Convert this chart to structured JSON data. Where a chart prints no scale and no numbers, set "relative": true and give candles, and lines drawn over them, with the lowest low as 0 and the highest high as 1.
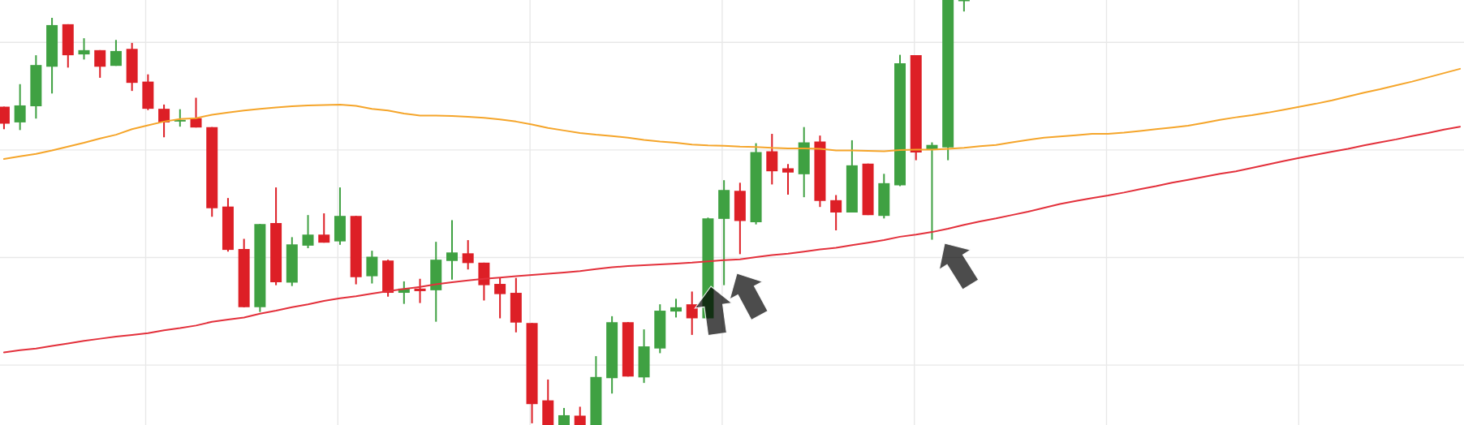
{
  "chart_data": {
    "type": "candlestick",
    "relative": true,
    "tick_labels": false,
    "grid": true,
    "categories": [
      null,
      null,
      null,
      null,
      null,
      null,
      null,
      null,
      null,
      null,
      null,
      null,
      null,
      null,
      null,
      null,
      null,
      null,
      null,
      null,
      null,
      null,
      null,
      null,
      null,
      null,
      null,
      null,
      null,
      null,
      null,
      null,
      null,
      null,
      null,
      null,
      null,
      null,
      null,
      null,
      null,
      null,
      null,
      null,
      null,
      null,
      null,
      null,
      null,
      null,
      null,
      null,
      null,
      null,
      null,
      null,
      null,
      null,
      null,
      null,
      null,
      null,
      null,
      null,
      null,
      null,
      null,
      null,
      null,
      null,
      null,
      null,
      null,
      null,
      null,
      null,
      null,
      null,
      null,
      null,
      null,
      null,
      null,
      null,
      null,
      null,
      null,
      null,
      null,
      null,
      null,
      null
    ],
    "ohlc": [
      [
        0.749,
        0.749,
        0.696,
        0.709
      ],
      [
        0.712,
        0.802,
        0.694,
        0.752
      ],
      [
        0.75,
        0.87,
        0.721,
        0.847
      ],
      [
        0.843,
        0.958,
        0.78,
        0.941
      ],
      [
        0.943,
        0.943,
        0.841,
        0.87
      ],
      [
        0.872,
        0.91,
        0.86,
        0.882
      ],
      [
        0.882,
        0.882,
        0.817,
        0.843
      ],
      [
        0.845,
        0.906,
        0.845,
        0.88
      ],
      [
        0.885,
        0.899,
        0.786,
        0.805
      ],
      [
        0.808,
        0.825,
        0.741,
        0.744
      ],
      [
        0.744,
        0.754,
        0.677,
        0.712
      ],
      [
        0.714,
        0.743,
        0.702,
        0.718
      ],
      [
        0.722,
        0.77,
        0.7,
        0.7
      ],
      [
        0.701,
        0.701,
        0.49,
        0.51
      ],
      [
        0.514,
        0.534,
        0.408,
        0.412
      ],
      [
        0.414,
        0.438,
        0.277,
        0.277
      ],
      [
        0.277,
        0.473,
        0.266,
        0.473
      ],
      [
        0.475,
        0.559,
        0.329,
        0.336
      ],
      [
        0.335,
        0.442,
        0.327,
        0.425
      ],
      [
        0.422,
        0.494,
        0.416,
        0.448
      ],
      [
        0.448,
        0.498,
        0.429,
        0.429
      ],
      [
        0.432,
        0.559,
        0.424,
        0.492
      ],
      [
        0.492,
        0.492,
        0.331,
        0.348
      ],
      [
        0.35,
        0.41,
        0.333,
        0.396
      ],
      [
        0.387,
        0.389,
        0.302,
        0.311
      ],
      [
        0.311,
        0.338,
        0.285,
        0.321
      ],
      [
        0.321,
        0.344,
        0.287,
        0.315
      ],
      [
        0.317,
        0.431,
        0.243,
        0.389
      ],
      [
        0.386,
        0.482,
        0.342,
        0.406
      ],
      [
        0.404,
        0.435,
        0.366,
        0.381
      ],
      [
        0.382,
        0.382,
        0.293,
        0.329
      ],
      [
        0.332,
        0.346,
        0.251,
        0.308
      ],
      [
        0.311,
        0.346,
        0.218,
        0.241
      ],
      [
        0.24,
        0.24,
        0.004,
        0.049
      ],
      [
        0.058,
        0.107,
        0,
        0
      ],
      [
        0,
        0.04,
        0,
        0.023
      ],
      [
        0.022,
        0.043,
        0,
        0
      ],
      [
        0,
        0.162,
        0,
        0.113
      ],
      [
        0.11,
        0.256,
        0.074,
        0.242
      ],
      [
        0.242,
        0.242,
        0.114,
        0.114
      ],
      [
        0.112,
        0.225,
        0.099,
        0.185
      ],
      [
        0.18,
        0.284,
        0.169,
        0.269
      ],
      [
        0.267,
        0.297,
        0.253,
        0.277
      ],
      [
        0.284,
        0.314,
        0.212,
        0.251
      ],
      [
        0.251,
        0.488,
        0.251,
        0.486
      ],
      [
        0.485,
        0.576,
        0.329,
        0.553
      ],
      [
        0.551,
        0.57,
        0.402,
        0.48
      ],
      [
        0.477,
        0.663,
        0.472,
        0.642
      ],
      [
        0.644,
        0.685,
        0.566,
        0.597
      ],
      [
        0.604,
        0.614,
        0.542,
        0.594
      ],
      [
        0.59,
        0.701,
        0.536,
        0.665
      ],
      [
        0.667,
        0.681,
        0.513,
        0.527
      ],
      [
        0.529,
        0.541,
        0.458,
        0.5
      ],
      [
        0.5,
        0.67,
        0.5,
        0.611
      ],
      [
        0.615,
        0.615,
        0.494,
        0.494
      ],
      [
        0.492,
        0.591,
        0.486,
        0.569
      ],
      [
        0.564,
        0.871,
        0.562,
        0.851
      ],
      [
        0.87,
        0.87,
        0.623,
        0.641
      ],
      [
        0.649,
        0.665,
        0.436,
        0.659
      ],
      [
        0.653,
        1,
        0.623,
        1
      ],
      [
        1,
        1,
        0.973,
        1
      ],
      null,
      null,
      null,
      null,
      null,
      null,
      null,
      null,
      null,
      null,
      null,
      null,
      null,
      null,
      null,
      null,
      null,
      null,
      null,
      null,
      null,
      null,
      null,
      null,
      null,
      null,
      null,
      null,
      null,
      null,
      null
    ],
    "colors": [
      "#dd1f26",
      "#3fa142",
      "#3fa142",
      "#3fa142",
      "#dd1f26",
      "#3fa142",
      "#dd1f26",
      "#3fa142",
      "#dd1f26",
      "#dd1f26",
      "#dd1f26",
      "#3fa142",
      "#dd1f26",
      "#dd1f26",
      "#dd1f26",
      "#dd1f26",
      "#3fa142",
      "#dd1f26",
      "#3fa142",
      "#3fa142",
      "#dd1f26",
      "#3fa142",
      "#dd1f26",
      "#3fa142",
      "#dd1f26",
      "#3fa142",
      "#dd1f26",
      "#3fa142",
      "#3fa142",
      "#dd1f26",
      "#dd1f26",
      "#dd1f26",
      "#dd1f26",
      "#dd1f26",
      "#dd1f26",
      "#3fa142",
      "#dd1f26",
      "#3fa142",
      "#3fa142",
      "#dd1f26",
      "#3fa142",
      "#3fa142",
      "#3fa142",
      "#dd1f26",
      "#3fa142",
      "#3fa142",
      "#dd1f26",
      "#3fa142",
      "#dd1f26",
      "#dd1f26",
      "#3fa142",
      "#dd1f26",
      "#dd1f26",
      "#3fa142",
      "#dd1f26",
      "#3fa142",
      "#3fa142",
      "#dd1f26",
      "#3fa142",
      "#3fa142",
      "#3fa142",
      null,
      null,
      null,
      null,
      null,
      null,
      null,
      null,
      null,
      null,
      null,
      null,
      null,
      null,
      null,
      null,
      null,
      null,
      null,
      null,
      null,
      null,
      null,
      null,
      null,
      null,
      null,
      null,
      null,
      null,
      null
    ],
    "series": [
      {
        "type": "line",
        "color": "#f5a52a",
        "values": [
          0.626,
          0.632,
          0.638,
          0.646,
          0.655,
          0.664,
          0.674,
          0.683,
          0.696,
          0.705,
          0.714,
          0.72,
          0.722,
          0.73,
          0.735,
          0.74,
          0.744,
          0.747,
          0.75,
          0.752,
          0.753,
          0.754,
          0.751,
          0.744,
          0.74,
          0.733,
          0.728,
          0.728,
          0.727,
          0.725,
          0.723,
          0.719,
          0.714,
          0.707,
          0.699,
          0.693,
          0.687,
          0.683,
          0.68,
          0.676,
          0.671,
          0.667,
          0.664,
          0.66,
          0.658,
          0.657,
          0.655,
          0.654,
          0.652,
          0.651,
          0.651,
          0.65,
          0.646,
          0.646,
          0.645,
          0.644,
          0.647,
          0.648,
          0.648,
          0.65,
          0.652,
          0.656,
          0.659,
          0.665,
          0.671,
          0.676,
          0.679,
          0.682,
          0.685,
          0.685,
          0.688,
          0.692,
          0.696,
          0.7,
          0.704,
          0.711,
          0.718,
          0.724,
          0.729,
          0.735,
          0.742,
          0.749,
          0.756,
          0.764,
          0.773,
          0.782,
          0.79,
          0.799,
          0.808,
          0.818,
          0.828,
          0.838
        ]
      },
      {
        "type": "line",
        "color": "#e3303b",
        "values": [
          0.171,
          0.176,
          0.18,
          0.186,
          0.192,
          0.198,
          0.203,
          0.208,
          0.212,
          0.216,
          0.223,
          0.228,
          0.234,
          0.243,
          0.248,
          0.253,
          0.262,
          0.269,
          0.277,
          0.284,
          0.292,
          0.298,
          0.303,
          0.309,
          0.315,
          0.32,
          0.325,
          0.331,
          0.336,
          0.34,
          0.344,
          0.347,
          0.35,
          0.353,
          0.356,
          0.359,
          0.362,
          0.367,
          0.371,
          0.374,
          0.376,
          0.378,
          0.38,
          0.382,
          0.385,
          0.388,
          0.39,
          0.395,
          0.4,
          0.403,
          0.408,
          0.413,
          0.417,
          0.423,
          0.429,
          0.435,
          0.443,
          0.448,
          0.454,
          0.462,
          0.471,
          0.479,
          0.486,
          0.494,
          0.502,
          0.511,
          0.52,
          0.527,
          0.534,
          0.54,
          0.547,
          0.555,
          0.562,
          0.57,
          0.577,
          0.584,
          0.591,
          0.597,
          0.605,
          0.613,
          0.621,
          0.629,
          0.636,
          0.643,
          0.65,
          0.658,
          0.665,
          0.672,
          0.68,
          0.687,
          0.695,
          0.702
        ]
      }
    ]
  }
}
